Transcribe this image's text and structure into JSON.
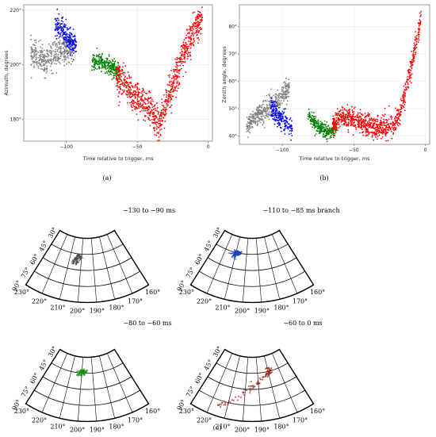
{
  "chart_data": [
    {
      "type": "scatter",
      "panel": "a",
      "caption": "(a)",
      "title": "",
      "xlabel": "Time relative to trigger, ms",
      "ylabel": "Azimuth, degrees",
      "xlim": [
        -130,
        3
      ],
      "ylim": [
        172,
        222
      ],
      "xticks": [
        -100,
        -50,
        0
      ],
      "xtick_labels": [
        "−100",
        "−50",
        "0"
      ],
      "yticks": [
        180,
        200,
        220
      ],
      "ytick_labels": [
        "180°",
        "200°",
        "220°"
      ],
      "grid": true,
      "series": [
        {
          "color": "#808080",
          "x": [
            -125,
            -120,
            -115,
            -110,
            -105,
            -100,
            -95
          ],
          "y": [
            204,
            203,
            201,
            203,
            205,
            206,
            207
          ],
          "spread": 2.5
        },
        {
          "color": "#0000ff",
          "x": [
            -108,
            -104,
            -100,
            -96,
            -93
          ],
          "y": [
            214,
            213,
            211,
            208,
            207
          ],
          "spread": 2.2
        },
        {
          "color": "#008000",
          "x": [
            -82,
            -77,
            -72,
            -67,
            -62
          ],
          "y": [
            201,
            201,
            200,
            199,
            196
          ],
          "spread": 1.6
        },
        {
          "color": "#ff0000",
          "x": [
            -65,
            -58,
            -52,
            -46,
            -42,
            -38,
            -35,
            -32,
            -28,
            -24,
            -20,
            -16,
            -12,
            -8,
            -4
          ],
          "y": [
            196,
            193,
            188,
            186,
            184,
            181,
            178,
            182,
            188,
            194,
            200,
            205,
            210,
            214,
            217
          ],
          "spread": 3
        }
      ]
    },
    {
      "type": "scatter",
      "panel": "b",
      "caption": "(b)",
      "title": "",
      "xlabel": "Time relative to trigger, ms",
      "ylabel": "Zenith angle, degrees",
      "xlim": [
        -130,
        3
      ],
      "ylim": [
        37,
        88
      ],
      "xticks": [
        -100,
        -50,
        0
      ],
      "xtick_labels": [
        "−100",
        "−50",
        "0"
      ],
      "yticks": [
        40,
        50,
        60,
        70,
        80
      ],
      "ytick_labels": [
        "40°",
        "50°",
        "60°",
        "70°",
        "80°"
      ],
      "grid": true,
      "series": [
        {
          "color": "#808080",
          "x": [
            -125,
            -120,
            -115,
            -110,
            -105,
            -100,
            -95
          ],
          "y": [
            44,
            46,
            48,
            50,
            52,
            55,
            57
          ],
          "spread": 2
        },
        {
          "color": "#0000ff",
          "x": [
            -108,
            -104,
            -100,
            -96,
            -93
          ],
          "y": [
            51,
            48,
            46,
            44,
            43
          ],
          "spread": 1.8
        },
        {
          "color": "#008000",
          "x": [
            -82,
            -78,
            -74,
            -70,
            -66,
            -62
          ],
          "y": [
            48,
            45,
            43,
            42,
            42,
            43
          ],
          "spread": 1.3
        },
        {
          "color": "#ff0000",
          "x": [
            -65,
            -58,
            -50,
            -42,
            -34,
            -28,
            -22,
            -18,
            -14,
            -11,
            -8,
            -5,
            -3
          ],
          "y": [
            44,
            47,
            46,
            44,
            43,
            43,
            44,
            48,
            56,
            63,
            70,
            78,
            84
          ],
          "spread": 2
        }
      ]
    },
    {
      "type": "scatter",
      "panel": "c",
      "caption": "(c)",
      "projection": "polar-sector",
      "zenith_labels": [
        "90°",
        "75°",
        "60°",
        "45°",
        "30°"
      ],
      "azimuth_labels": [
        "230°",
        "220°",
        "210°",
        "200°",
        "190°",
        "180°",
        "170°",
        "160°"
      ],
      "maps": [
        {
          "title": "−130 to −90 ms",
          "color": "#505050",
          "az": [
            201,
            204,
            206
          ],
          "zen": [
            46,
            50,
            54
          ]
        },
        {
          "title": "−110 to −85 ms branch",
          "color": "#1f3fb8",
          "az": [
            212,
            209,
            207
          ],
          "zen": [
            49,
            46,
            44
          ]
        },
        {
          "title": "−80 to −60 ms",
          "color": "#1a8c1a",
          "az": [
            202,
            200,
            197
          ],
          "zen": [
            46,
            44,
            43
          ]
        },
        {
          "title": "−60 to 0 ms",
          "color": "#a01010",
          "az": [
            215,
            205,
            195,
            185,
            180,
            178
          ],
          "zen": [
            80,
            68,
            58,
            50,
            45,
            44
          ]
        }
      ]
    }
  ]
}
